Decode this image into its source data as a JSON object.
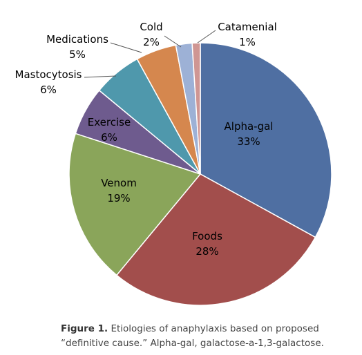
{
  "chart_data": {
    "type": "pie",
    "slices": [
      {
        "name": "Alpha-gal",
        "value": 33,
        "label": "33%",
        "color": "#4F6FA2"
      },
      {
        "name": "Foods",
        "value": 28,
        "label": "28%",
        "color": "#A24E4C"
      },
      {
        "name": "Venom",
        "value": 19,
        "label": "19%",
        "color": "#8AA55A"
      },
      {
        "name": "Exercise",
        "value": 6,
        "label": "6%",
        "color": "#6E5B8E"
      },
      {
        "name": "Mastocytosis",
        "value": 6,
        "label": "6%",
        "color": "#4F98AC"
      },
      {
        "name": "Medications",
        "value": 5,
        "label": "5%",
        "color": "#D5874E"
      },
      {
        "name": "Cold",
        "value": 2,
        "label": "2%",
        "color": "#9DB1D6"
      },
      {
        "name": "Catamenial",
        "value": 1,
        "label": "1%",
        "color": "#CF9693"
      }
    ],
    "title": "",
    "legend": "none",
    "labels": "outside-with-leader-lines for small slices, inside for large"
  },
  "caption": {
    "figure_label": "Figure 1.",
    "text": " Etiologies of anaphylaxis based on proposed “definitive cause.” Alpha-gal, galactose-a-1,3-galactose."
  }
}
